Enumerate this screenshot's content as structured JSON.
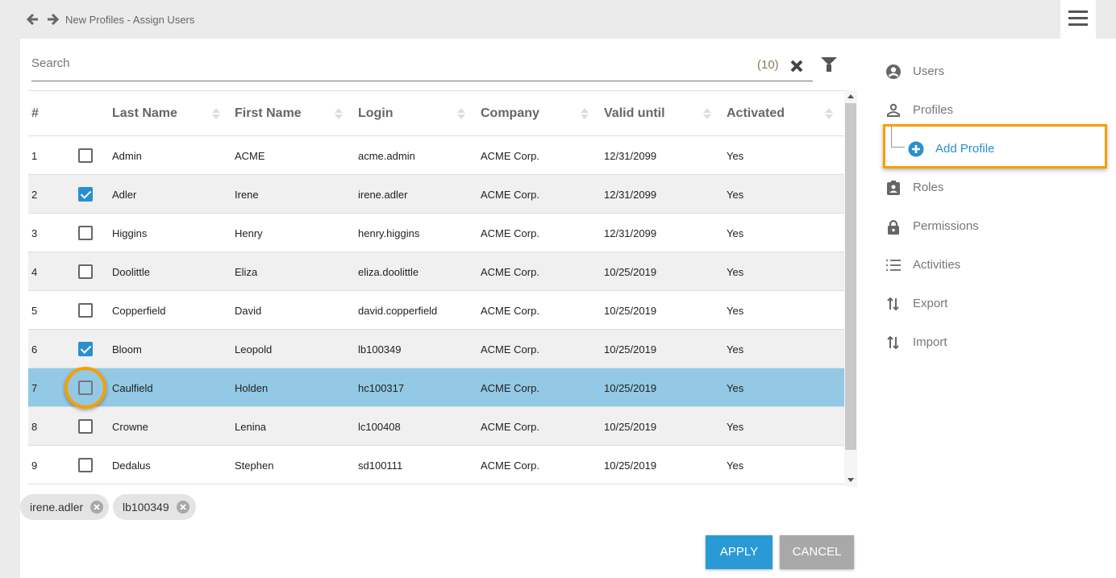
{
  "header": {
    "title": "New Profiles - Assign Users",
    "back_icon": "arrow-left-icon",
    "forward_icon": "arrow-right-icon",
    "menu_icon": "hamburger-icon"
  },
  "search": {
    "placeholder": "Search",
    "count": "(10)"
  },
  "table": {
    "columns": [
      "#",
      "Last Name",
      "First Name",
      "Login",
      "Company",
      "Valid until",
      "Activated"
    ],
    "rows": [
      {
        "n": "1",
        "checked": false,
        "last": "Admin",
        "first": "ACME",
        "login": "acme.admin",
        "company": "ACME Corp.",
        "valid": "12/31/2099",
        "active": "Yes"
      },
      {
        "n": "2",
        "checked": true,
        "last": "Adler",
        "first": "Irene",
        "login": "irene.adler",
        "company": "ACME Corp.",
        "valid": "12/31/2099",
        "active": "Yes"
      },
      {
        "n": "3",
        "checked": false,
        "last": "Higgins",
        "first": "Henry",
        "login": "henry.higgins",
        "company": "ACME Corp.",
        "valid": "12/31/2099",
        "active": "Yes"
      },
      {
        "n": "4",
        "checked": false,
        "last": "Doolittle",
        "first": "Eliza",
        "login": "eliza.doolittle",
        "company": "ACME Corp.",
        "valid": "10/25/2019",
        "active": "Yes"
      },
      {
        "n": "5",
        "checked": false,
        "last": "Copperfield",
        "first": "David",
        "login": "david.copperfield",
        "company": "ACME Corp.",
        "valid": "10/25/2019",
        "active": "Yes"
      },
      {
        "n": "6",
        "checked": true,
        "last": "Bloom",
        "first": "Leopold",
        "login": "lb100349",
        "company": "ACME Corp.",
        "valid": "10/25/2019",
        "active": "Yes"
      },
      {
        "n": "7",
        "checked": false,
        "hover": true,
        "last": "Caulfield",
        "first": "Holden",
        "login": "hc100317",
        "company": "ACME Corp.",
        "valid": "10/25/2019",
        "active": "Yes"
      },
      {
        "n": "8",
        "checked": false,
        "last": "Crowne",
        "first": "Lenina",
        "login": "lc100408",
        "company": "ACME Corp.",
        "valid": "10/25/2019",
        "active": "Yes"
      },
      {
        "n": "9",
        "checked": false,
        "last": "Dedalus",
        "first": "Stephen",
        "login": "sd100111",
        "company": "ACME Corp.",
        "valid": "10/25/2019",
        "active": "Yes"
      }
    ]
  },
  "chips": [
    "irene.adler",
    "lb100349"
  ],
  "buttons": {
    "apply": "APPLY",
    "cancel": "CANCEL"
  },
  "colors": {
    "accent": "#2a8fd0",
    "highlight_row": "#93c9e4",
    "callout": "#f5a000",
    "apply": "#2a9ad6",
    "cancel": "#a8a8a8"
  },
  "sidebar": {
    "items": [
      {
        "label": "Users",
        "icon": "account-circle-icon"
      },
      {
        "label": "Profiles",
        "icon": "person-outline-icon"
      },
      {
        "label": "Add Profile",
        "icon": "add-circle-icon"
      },
      {
        "label": "Roles",
        "icon": "badge-icon"
      },
      {
        "label": "Permissions",
        "icon": "lock-icon"
      },
      {
        "label": "Activities",
        "icon": "numbered-list-icon"
      },
      {
        "label": "Export",
        "icon": "swap-vertical-icon"
      },
      {
        "label": "Import",
        "icon": "swap-vertical-icon"
      }
    ]
  }
}
